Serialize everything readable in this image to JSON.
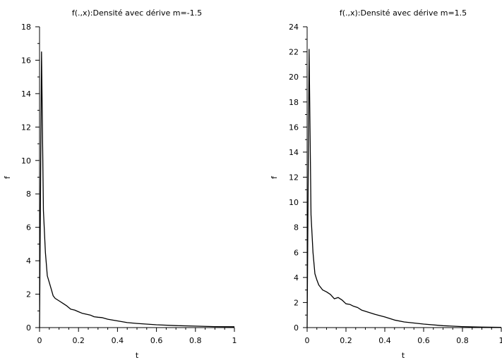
{
  "chart_data": [
    {
      "type": "line",
      "title": "f(.,x):Densité  avec dérive m=-1.5",
      "xlabel": "t",
      "ylabel": "f",
      "xlim": [
        0,
        1
      ],
      "ylim": [
        0,
        18
      ],
      "xticks": [
        0,
        0.2,
        0.4,
        0.6,
        0.8,
        1
      ],
      "xtick_labels": [
        "0",
        "0.2",
        "0.4",
        "0.6",
        "0.8",
        "1"
      ],
      "yticks": [
        0,
        2,
        4,
        6,
        8,
        10,
        12,
        14,
        16,
        18
      ],
      "ytick_labels": [
        "0",
        "2",
        "4",
        "6",
        "8",
        "10",
        "12",
        "14",
        "16",
        "18"
      ],
      "grid": false,
      "series": [
        {
          "x": [
            0.0,
            0.01,
            0.02,
            0.03,
            0.04,
            0.05,
            0.06,
            0.07,
            0.08,
            0.1,
            0.12,
            0.14,
            0.16,
            0.18,
            0.2,
            0.22,
            0.24,
            0.26,
            0.28,
            0.3,
            0.32,
            0.35,
            0.4,
            0.45,
            0.5,
            0.6,
            0.7,
            0.8,
            0.9,
            1.0
          ],
          "y": [
            0,
            16.5,
            7.0,
            4.5,
            3.1,
            2.7,
            2.3,
            1.9,
            1.75,
            1.6,
            1.45,
            1.3,
            1.1,
            1.05,
            0.95,
            0.85,
            0.8,
            0.75,
            0.65,
            0.62,
            0.6,
            0.5,
            0.4,
            0.3,
            0.25,
            0.17,
            0.12,
            0.09,
            0.06,
            0.05
          ]
        }
      ]
    },
    {
      "type": "line",
      "title": "f(.,x):Densité  avec dérive m=1.5",
      "xlabel": "t",
      "ylabel": "f",
      "xlim": [
        0,
        1
      ],
      "ylim": [
        0,
        24
      ],
      "xticks": [
        0,
        0.2,
        0.4,
        0.6,
        0.8,
        1
      ],
      "xtick_labels": [
        "0",
        "0.2",
        "0.4",
        "0.6",
        "0.8",
        "1"
      ],
      "yticks": [
        0,
        2,
        4,
        6,
        8,
        10,
        12,
        14,
        16,
        18,
        20,
        22,
        24
      ],
      "ytick_labels": [
        "0",
        "2",
        "4",
        "6",
        "8",
        "10",
        "12",
        "14",
        "16",
        "18",
        "20",
        "22",
        "24"
      ],
      "grid": false,
      "series": [
        {
          "x": [
            0.0,
            0.01,
            0.02,
            0.03,
            0.04,
            0.05,
            0.06,
            0.07,
            0.08,
            0.1,
            0.12,
            0.14,
            0.16,
            0.18,
            0.2,
            0.22,
            0.24,
            0.26,
            0.28,
            0.3,
            0.32,
            0.35,
            0.4,
            0.45,
            0.5,
            0.6,
            0.7,
            0.8,
            0.9,
            1.0
          ],
          "y": [
            0,
            22.2,
            9.0,
            6.0,
            4.3,
            3.8,
            3.4,
            3.2,
            3.0,
            2.85,
            2.65,
            2.3,
            2.4,
            2.2,
            1.9,
            1.85,
            1.7,
            1.6,
            1.4,
            1.3,
            1.2,
            1.05,
            0.85,
            0.6,
            0.45,
            0.28,
            0.15,
            0.08,
            0.04,
            0.02
          ]
        }
      ]
    }
  ]
}
